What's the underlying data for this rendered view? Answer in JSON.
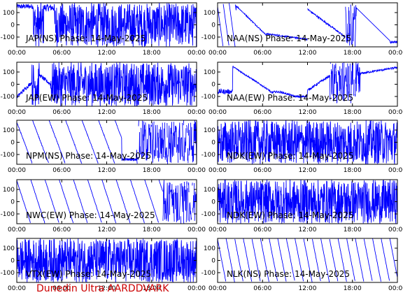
{
  "footer": {
    "label": "Dunedin Ultra AARDDVARK",
    "color": "#cc0000"
  },
  "chart_data": {
    "type": "line",
    "trace_color": "#0000ff",
    "panel_rows": 5,
    "panel_cols": 2,
    "x_tick_labels": [
      "00:00",
      "06:00",
      "12:00",
      "18:00",
      "00:00"
    ],
    "x_range_hours": [
      0,
      24
    ],
    "y_ticks": [
      100,
      0,
      -100
    ],
    "y_range": [
      -180,
      180
    ],
    "panels": [
      {
        "id": "jap-ns",
        "title": "JAP(NS) Phase: 14-May-2025",
        "pattern": "jap-ns"
      },
      {
        "id": "naa-ns",
        "title": "NAA(NS) Phase: 14-May-2025",
        "pattern": "naa-ns"
      },
      {
        "id": "jap-ew",
        "title": "JAP(EW) Phase: 14-May-2025",
        "pattern": "jap-ew"
      },
      {
        "id": "naa-ew",
        "title": "NAA(EW) Phase: 14-May-2025",
        "pattern": "naa-ew"
      },
      {
        "id": "npm-ns",
        "title": "NPM(NS) Phase: 14-May-2025",
        "pattern": "npm-ns"
      },
      {
        "id": "ndk-ew-1",
        "title": "NDK(EW) Phase: 14-May-2025",
        "pattern": "ndk"
      },
      {
        "id": "nwc-ew",
        "title": "NWC(EW) Phase: 14-May-2025",
        "pattern": "nwc-ew"
      },
      {
        "id": "ndk-ew-2",
        "title": "NDK(EW) Phase: 14-May-2025",
        "pattern": "ndk"
      },
      {
        "id": "vtx-ew",
        "title": "VTX(EW) Phase: 14-May-2025",
        "pattern": "vtx-ew"
      },
      {
        "id": "nlk-ns",
        "title": "NLK(NS) Phase: 14-May-2025",
        "pattern": "nlk-ns"
      }
    ]
  }
}
